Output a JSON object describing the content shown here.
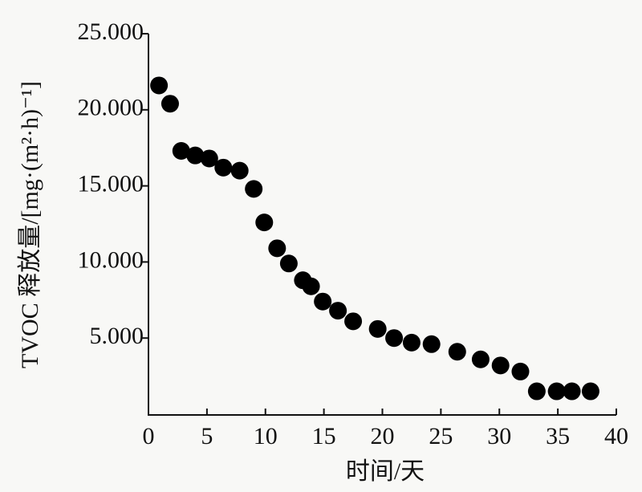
{
  "chart_data": {
    "type": "scatter",
    "x_label": "时间/天",
    "y_label": "TVOC 释放量/[mg·(m²·h)⁻¹]",
    "color": "#000000",
    "x": [
      0.9,
      1.85,
      2.8,
      4.0,
      5.2,
      6.4,
      7.8,
      9.0,
      9.9,
      11.0,
      12.0,
      13.2,
      13.9,
      14.9,
      16.2,
      17.5,
      19.6,
      21.0,
      22.5,
      24.2,
      26.4,
      28.4,
      30.1,
      31.8,
      33.2,
      34.9,
      36.2,
      37.8
    ],
    "values": [
      21.6,
      20.4,
      17.3,
      17.0,
      16.8,
      16.2,
      16.0,
      14.8,
      12.6,
      10.9,
      9.9,
      8.8,
      8.4,
      7.4,
      6.8,
      6.1,
      5.6,
      5.0,
      4.7,
      4.6,
      4.1,
      3.6,
      3.2,
      2.8,
      1.5,
      1.5,
      1.5,
      1.5
    ],
    "xlim": [
      0,
      40
    ],
    "xticks": [
      0,
      5,
      10,
      15,
      20,
      25,
      30,
      35,
      40
    ],
    "ylim": [
      0,
      25
    ],
    "yticks": [
      {
        "value": 5,
        "label": "5.000"
      },
      {
        "value": 10,
        "label": "10.000"
      },
      {
        "value": 15,
        "label": "15.000"
      },
      {
        "value": 20,
        "label": "20.000"
      },
      {
        "value": 25,
        "label": "25.000"
      }
    ],
    "grid": false
  }
}
